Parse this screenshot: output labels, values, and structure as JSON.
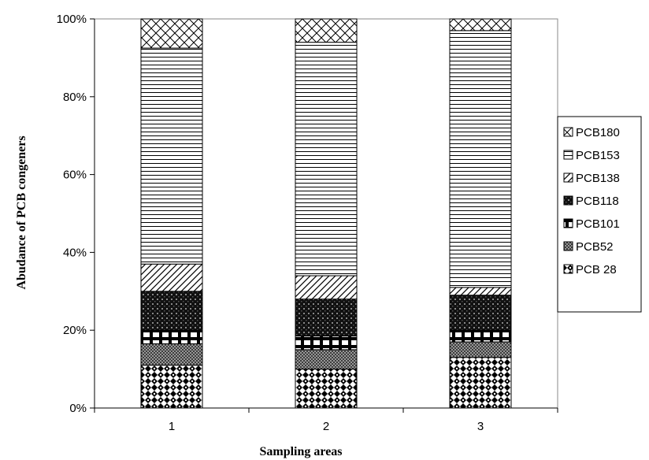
{
  "chart_data": {
    "type": "bar",
    "stacked": "percent",
    "categories": [
      "1",
      "2",
      "3"
    ],
    "xlabel": "Sampling areas",
    "ylabel": "Abudance of PCB congeners",
    "ylim": [
      0,
      100
    ],
    "yticks": [
      "0%",
      "20%",
      "40%",
      "60%",
      "80%",
      "100%"
    ],
    "grid": false,
    "legend_position": "right",
    "series": [
      {
        "name": "PCB 28",
        "pattern": "checker-diamond",
        "values": [
          11,
          10,
          13
        ]
      },
      {
        "name": "PCB52",
        "pattern": "crosshatch-dense",
        "values": [
          5.5,
          5,
          4
        ]
      },
      {
        "name": "PCB101",
        "pattern": "brick",
        "values": [
          3.5,
          3.5,
          3
        ]
      },
      {
        "name": "PCB118",
        "pattern": "dark-grid",
        "values": [
          10,
          9.5,
          9
        ]
      },
      {
        "name": "PCB138",
        "pattern": "diagonal",
        "values": [
          7,
          6,
          2
        ]
      },
      {
        "name": "PCB153",
        "pattern": "horizontal",
        "values": [
          55.5,
          60,
          66
        ]
      },
      {
        "name": "PCB180",
        "pattern": "crosshatch-light",
        "values": [
          7.5,
          6,
          3
        ]
      }
    ]
  }
}
